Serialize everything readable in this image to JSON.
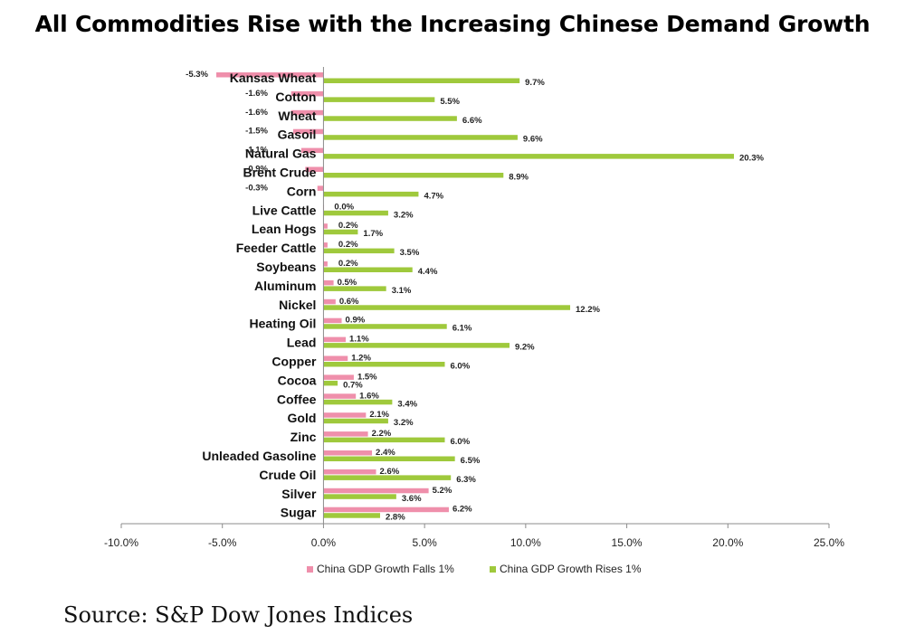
{
  "title": "All Commodities Rise with the Increasing Chinese Demand Growth",
  "source": "Source: S&P Dow Jones Indices",
  "colors": {
    "falls": "#ef8fab",
    "rises": "#9fc93c"
  },
  "chart_data": {
    "type": "bar",
    "orientation": "horizontal",
    "categories": [
      "Kansas Wheat",
      "Cotton",
      "Wheat",
      "Gasoil",
      "Natural Gas",
      "Brent Crude",
      "Corn",
      "Live Cattle",
      "Lean Hogs",
      "Feeder Cattle",
      "Soybeans",
      "Aluminum",
      "Nickel",
      "Heating Oil",
      "Lead",
      "Copper",
      "Cocoa",
      "Coffee",
      "Gold",
      "Zinc",
      "Unleaded Gasoline",
      "Crude Oil",
      "Silver",
      "Sugar"
    ],
    "series": [
      {
        "name": "China GDP Growth Falls 1%",
        "values": [
          -5.3,
          -1.6,
          -1.6,
          -1.5,
          -1.1,
          -0.9,
          -0.3,
          0.0,
          0.2,
          0.2,
          0.2,
          0.5,
          0.6,
          0.9,
          1.1,
          1.2,
          1.5,
          1.6,
          2.1,
          2.2,
          2.4,
          2.6,
          5.2,
          6.2
        ],
        "labels": [
          "-5.3%",
          "-1.6%",
          "-1.6%",
          "-1.5%",
          "-1.1%",
          "-0.9%",
          "-0.3%",
          "0.0%",
          "0.2%",
          "0.2%",
          "0.2%",
          "0.5%",
          "0.6%",
          "0.9%",
          "1.1%",
          "1.2%",
          "1.5%",
          "1.6%",
          "2.1%",
          "2.2%",
          "2.4%",
          "2.6%",
          "5.2%",
          "6.2%"
        ]
      },
      {
        "name": "China GDP Growth Rises 1%",
        "values": [
          9.7,
          5.5,
          6.6,
          9.6,
          20.3,
          8.9,
          4.7,
          3.2,
          1.7,
          3.5,
          4.4,
          3.1,
          12.2,
          6.1,
          9.2,
          6.0,
          0.7,
          3.4,
          3.2,
          6.0,
          6.5,
          6.3,
          3.6,
          2.8
        ],
        "labels": [
          "9.7%",
          "5.5%",
          "6.6%",
          "9.6%",
          "20.3%",
          "8.9%",
          "4.7%",
          "3.2%",
          "1.7%",
          "3.5%",
          "4.4%",
          "3.1%",
          "12.2%",
          "6.1%",
          "9.2%",
          "6.0%",
          "0.7%",
          "3.4%",
          "3.2%",
          "6.0%",
          "6.5%",
          "6.3%",
          "3.6%",
          "2.8%"
        ]
      }
    ],
    "xlim": [
      -10,
      25
    ],
    "xticks": [
      "-10.0%",
      "-5.0%",
      "0.0%",
      "5.0%",
      "10.0%",
      "15.0%",
      "20.0%",
      "25.0%"
    ],
    "grid": false,
    "legend_position": "bottom"
  }
}
